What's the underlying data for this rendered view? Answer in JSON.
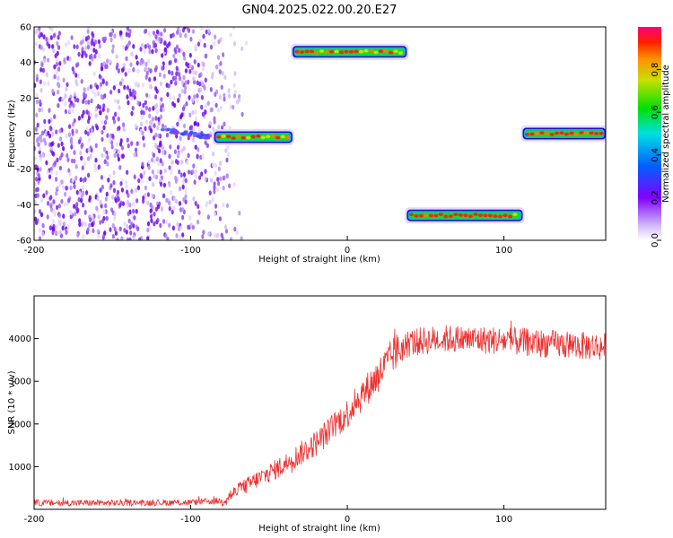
{
  "figure": {
    "title": "GN04.2025.022.00.20.E27"
  },
  "colors": {
    "line": "#ee3030",
    "axis": "#000000",
    "background": "#ffffff"
  },
  "chart_data": [
    {
      "type": "heatmap",
      "xlabel": "Height of straight line (km)",
      "ylabel": "Frequency (Hz)",
      "xlim": [
        -200,
        165
      ],
      "ylim": [
        -60,
        60
      ],
      "xticks": [
        "-200",
        "-100",
        "0",
        "100"
      ],
      "yticks": [
        "60",
        "40",
        "20",
        "0",
        "-20",
        "-40",
        "-60"
      ],
      "colorbar": {
        "label": "Normalized spectral amplitude",
        "range": [
          0,
          1
        ],
        "ticks": [
          "0.0",
          "0.2",
          "0.4",
          "0.6",
          "0.8"
        ]
      },
      "bands": [
        {
          "x_range": [
            -85,
            -35
          ],
          "freq_hz": -2
        },
        {
          "x_range": [
            -35,
            38
          ],
          "freq_hz": 46
        },
        {
          "x_range": [
            38,
            112
          ],
          "freq_hz": -46
        },
        {
          "x_range": [
            112,
            165
          ],
          "freq_hz": 0
        }
      ],
      "noise_region_x": [
        -200,
        -75
      ]
    },
    {
      "type": "line",
      "xlabel": "Height of straight line (km)",
      "ylabel": "SNR (10 * v/v)",
      "xlim": [
        -200,
        165
      ],
      "ylim": [
        0,
        5000
      ],
      "xticks": [
        "-200",
        "-100",
        "0",
        "100"
      ],
      "yticks": [
        "4000",
        "3000",
        "2000",
        "1000"
      ],
      "series": [
        {
          "x": [
            -200,
            -150,
            -100,
            -80,
            -75,
            -60,
            -40,
            -20,
            0,
            20,
            30,
            40,
            60,
            100,
            140,
            165
          ],
          "values": [
            150,
            150,
            160,
            200,
            320,
            650,
            1050,
            1550,
            2250,
            3150,
            3650,
            3900,
            4000,
            3950,
            3850,
            3800
          ]
        }
      ]
    }
  ]
}
